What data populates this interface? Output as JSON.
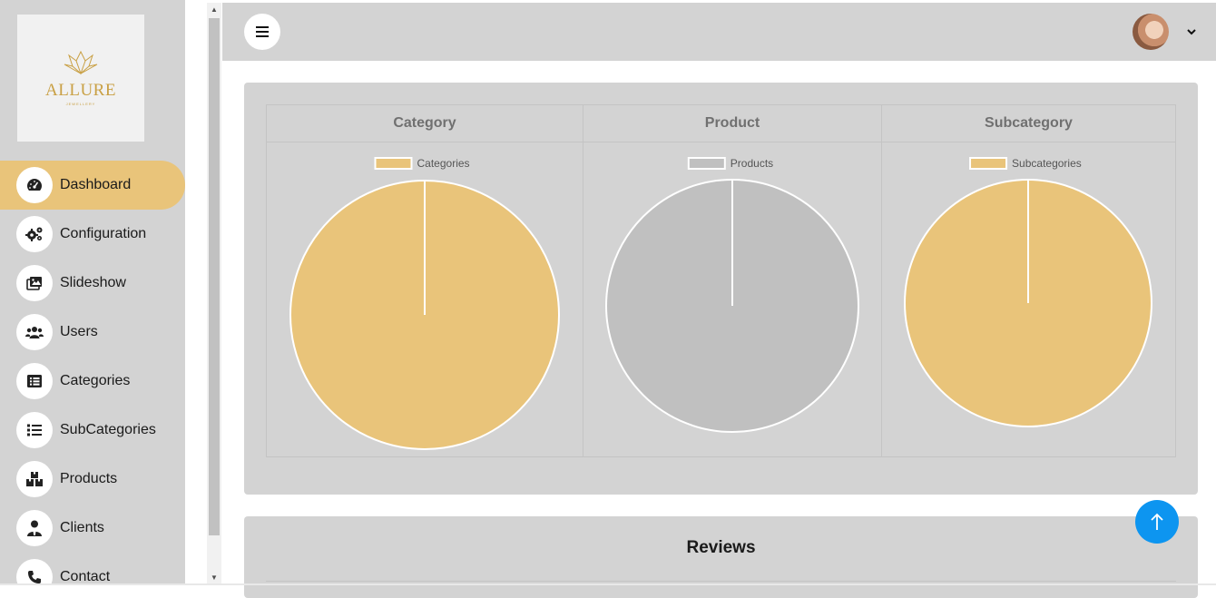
{
  "brand": {
    "name": "ALLURE",
    "tagline": "JEWELLERY"
  },
  "sidebar": {
    "items": [
      {
        "label": "Dashboard",
        "icon": "dashboard-gauge-icon",
        "active": true
      },
      {
        "label": "Configuration",
        "icon": "gears-icon",
        "active": false
      },
      {
        "label": "Slideshow",
        "icon": "images-icon",
        "active": false
      },
      {
        "label": "Users",
        "icon": "users-icon",
        "active": false
      },
      {
        "label": "Categories",
        "icon": "list-alt-icon",
        "active": false
      },
      {
        "label": "SubCategories",
        "icon": "list-icon",
        "active": false
      },
      {
        "label": "Products",
        "icon": "boxes-icon",
        "active": false
      },
      {
        "label": "Clients",
        "icon": "user-tie-icon",
        "active": false
      },
      {
        "label": "Contact",
        "icon": "phone-icon",
        "active": false
      }
    ]
  },
  "topbar": {
    "menu_icon": "hamburger-icon",
    "avatar_icon": "user-avatar",
    "caret_icon": "chevron-down-icon"
  },
  "charts": {
    "columns": [
      {
        "header": "Category"
      },
      {
        "header": "Product"
      },
      {
        "header": "Subcategory"
      }
    ]
  },
  "chart_data": [
    {
      "type": "pie",
      "title": "Category",
      "legend_position": "top",
      "categories": [
        "Categories"
      ],
      "values": [
        1
      ],
      "colors": [
        "#e9c47a"
      ]
    },
    {
      "type": "pie",
      "title": "Product",
      "legend_position": "top",
      "categories": [
        "Products"
      ],
      "values": [
        1
      ],
      "colors": [
        "#c0c0c0"
      ]
    },
    {
      "type": "pie",
      "title": "Subcategory",
      "legend_position": "top",
      "categories": [
        "Subcategories"
      ],
      "values": [
        1
      ],
      "colors": [
        "#e9c47a"
      ]
    }
  ],
  "reviews": {
    "title": "Reviews"
  },
  "colors": {
    "accent": "#e9c47a",
    "sidebar_bg": "#d3d3d3",
    "scroll_top_button": "#0d95f0",
    "brand_gold": "#c9a044"
  }
}
